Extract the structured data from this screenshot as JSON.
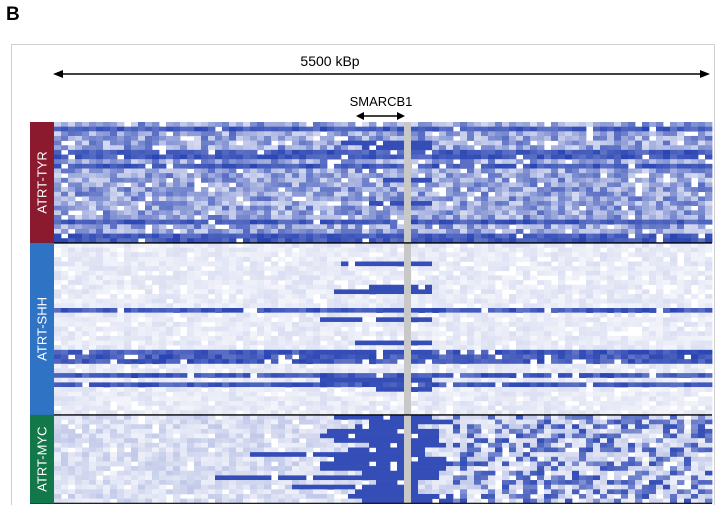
{
  "panel_label": "B",
  "scale_label": "5500 kBp",
  "gene_label": "SMARCB1",
  "groups": [
    {
      "name": "ATRT-TYR",
      "color": "#8b1a2f",
      "rows": 26
    },
    {
      "name": "ATRT-SHH",
      "color": "#2f74c4",
      "rows": 37
    },
    {
      "name": "ATRT-MYC",
      "color": "#12784a",
      "rows": 19
    }
  ],
  "colors": {
    "deletion": "#2a45b3",
    "light": "#c6cde9",
    "marker": "#c8c8c8",
    "frame": "#cfcfcf"
  }
}
